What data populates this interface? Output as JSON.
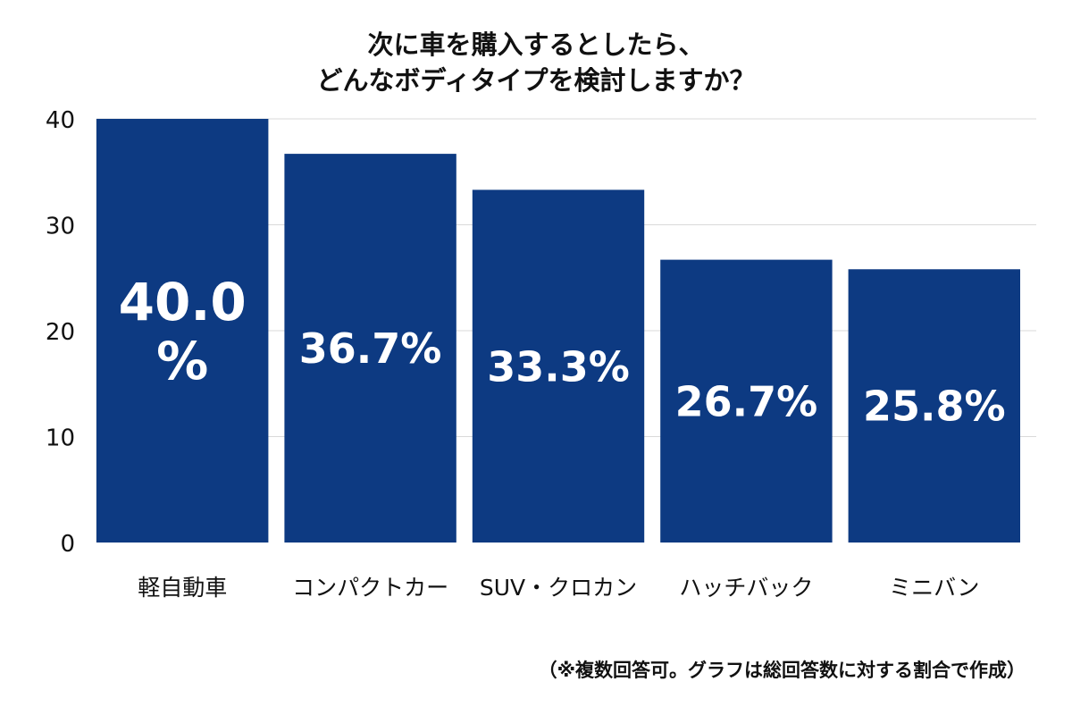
{
  "chart_data": {
    "type": "bar",
    "title": [
      "次に車を購入するとしたら、",
      "どんなボディタイプを検討しますか？"
    ],
    "categories": [
      "軽自動車",
      "コンパクトカー",
      "SUV・クロカン",
      "ハッチバック",
      "ミニバン"
    ],
    "values": [
      40.0,
      36.7,
      33.3,
      26.7,
      25.8
    ],
    "data_labels": [
      [
        "40.0",
        "%"
      ],
      [
        "36.7%"
      ],
      [
        "33.3%"
      ],
      [
        "26.7%"
      ],
      [
        "25.8%"
      ]
    ],
    "ylim": [
      0,
      40
    ],
    "yticks": [
      0,
      10,
      20,
      30,
      40
    ],
    "xlabel": "",
    "ylabel": "",
    "grid": true,
    "bar_color": "#0d3a82",
    "grid_color": "#d9d9d9"
  },
  "footnote": "（※複数回答可。グラフは総回答数に対する割合で作成）"
}
